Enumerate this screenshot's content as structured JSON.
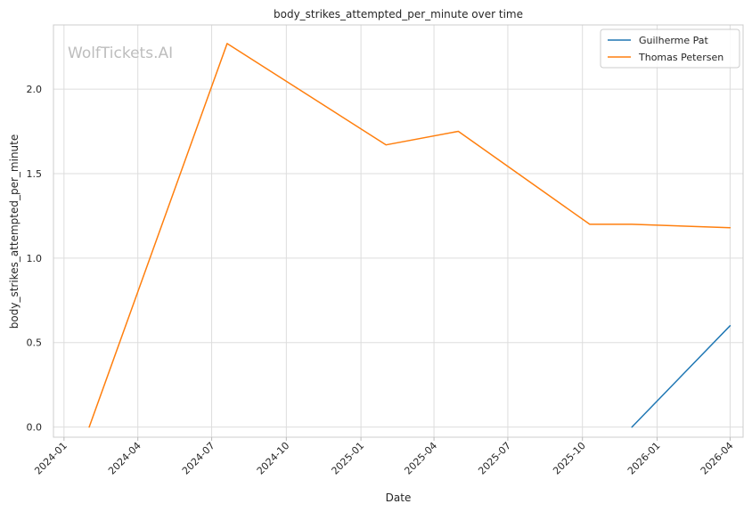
{
  "chart_data": {
    "type": "line",
    "title": "body_strikes_attempted_per_minute over time",
    "xlabel": "Date",
    "ylabel": "body_strikes_attempted_per_minute",
    "watermark": "WolfTickets.AI",
    "x_ticks": [
      "2024-01",
      "2024-04",
      "2024-07",
      "2024-10",
      "2025-01",
      "2025-04",
      "2025-07",
      "2025-10",
      "2026-01",
      "2026-04"
    ],
    "y_ticks": [
      "0.0",
      "0.5",
      "1.0",
      "1.5",
      "2.0"
    ],
    "xlim": [
      "2023-12-19",
      "2026-04-17"
    ],
    "ylim": [
      -0.06,
      2.38
    ],
    "grid": true,
    "legend_position": "top-right",
    "series": [
      {
        "name": "Guilherme Pat",
        "color": "#1f77b4",
        "points": [
          {
            "date": "2025-12-01",
            "value": 0.0
          },
          {
            "date": "2026-04-01",
            "value": 0.6
          }
        ]
      },
      {
        "name": "Thomas Petersen",
        "color": "#ff7f0e",
        "points": [
          {
            "date": "2024-02-01",
            "value": 0.0
          },
          {
            "date": "2024-07-20",
            "value": 2.27
          },
          {
            "date": "2025-02-01",
            "value": 1.67
          },
          {
            "date": "2025-05-01",
            "value": 1.75
          },
          {
            "date": "2025-10-10",
            "value": 1.2
          },
          {
            "date": "2025-12-01",
            "value": 1.2
          },
          {
            "date": "2026-04-01",
            "value": 1.18
          }
        ]
      }
    ]
  }
}
